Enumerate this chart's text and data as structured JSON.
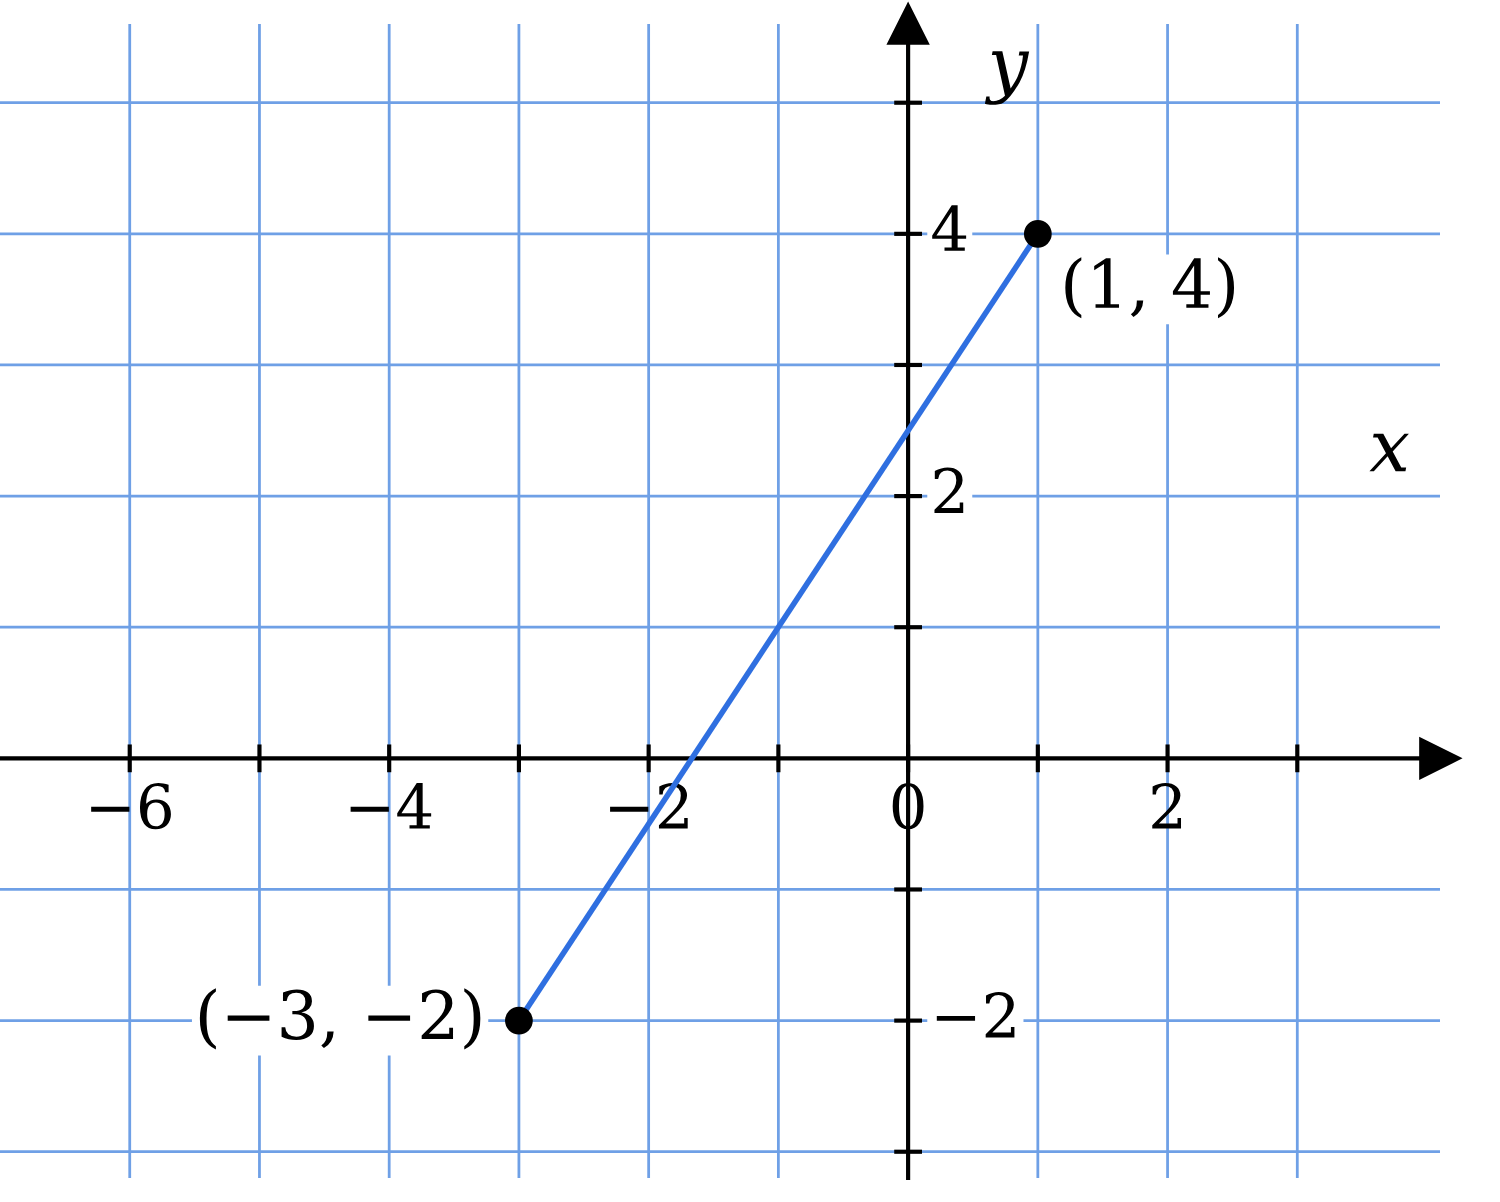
{
  "chart_data": {
    "type": "line",
    "xlabel": "x",
    "ylabel": "y",
    "x": [
      -3,
      1
    ],
    "series": [
      {
        "color": "#2f6fe0",
        "values": [
          -2,
          4
        ]
      }
    ],
    "marker": "circle",
    "line_style": "solid",
    "grid": true,
    "xlim": [
      -7,
      4.1
    ],
    "ylim": [
      -3.2,
      5.6
    ],
    "xticks": [
      -6,
      {
        "value": -5,
        "label": null
      },
      -4,
      {
        "value": -3,
        "label": null
      },
      -2,
      {
        "value": -1,
        "label": null
      },
      0,
      {
        "value": 1,
        "label": null
      },
      2,
      {
        "value": 3,
        "label": null
      }
    ],
    "yticks": [
      {
        "value": -3,
        "label": null
      },
      -2,
      {
        "value": -1,
        "label": null
      },
      {
        "value": 1,
        "label": null
      },
      2,
      {
        "value": 3,
        "label": null
      },
      4,
      {
        "value": 5,
        "label": null
      }
    ],
    "annotations": [
      {
        "text": "(−3, −2)",
        "x": -3,
        "y": -2
      },
      {
        "text": "(1, 4)",
        "x": 1,
        "y": 4
      }
    ]
  }
}
